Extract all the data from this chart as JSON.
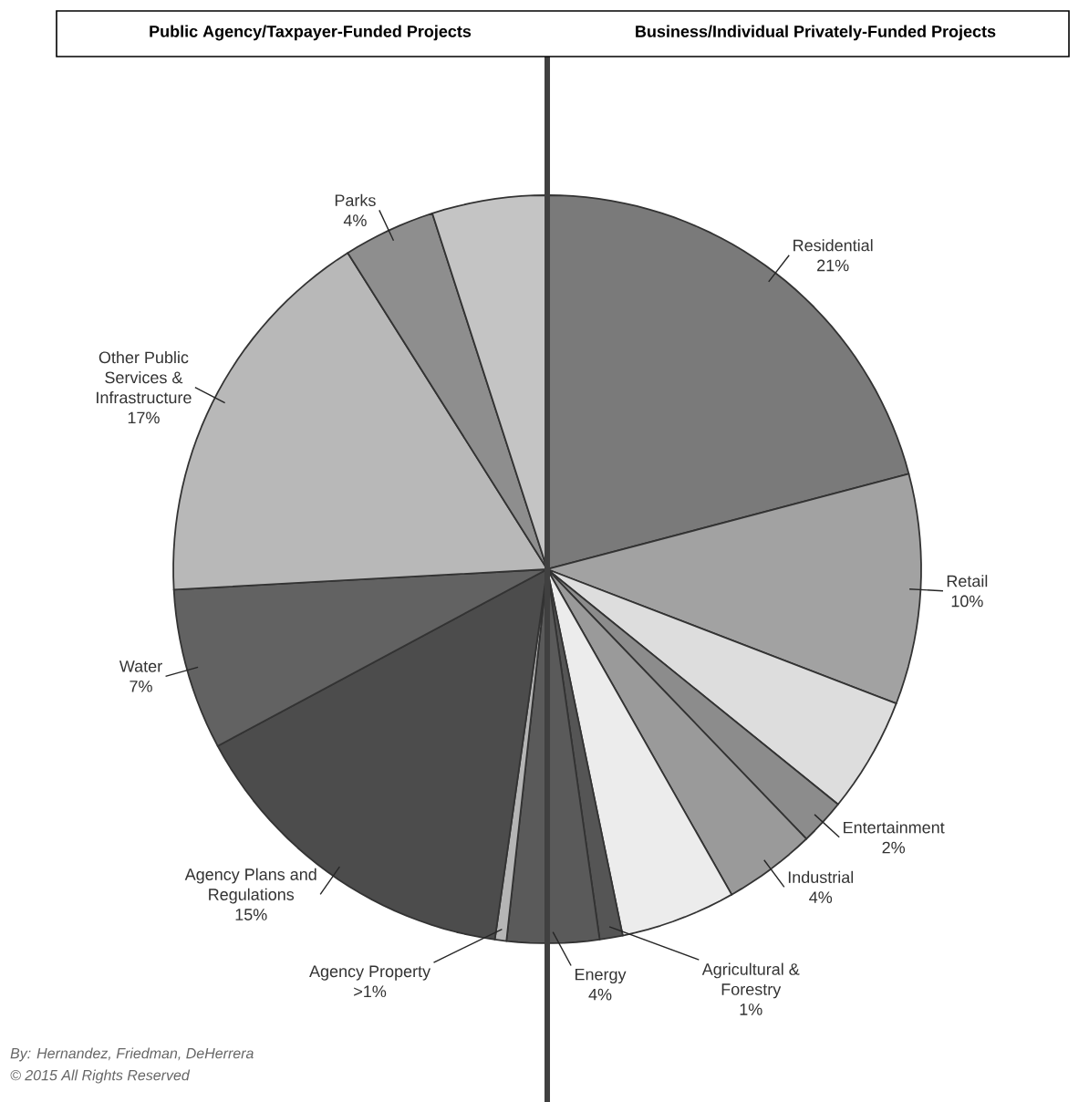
{
  "chart_data": {
    "type": "pie",
    "categories": [
      "Residential",
      "Retail",
      null,
      "Entertainment",
      "Industrial",
      null,
      "Agricultural & Forestry",
      "Energy",
      "Agency Property",
      "Agency Plans and Regulations",
      "Water",
      "Other Public Services & Infrastructure",
      "Parks",
      null
    ],
    "values": [
      21,
      10,
      5,
      2,
      4,
      5,
      1,
      4,
      0.5,
      15,
      7,
      17,
      4,
      5
    ],
    "value_labels": [
      "21%",
      "10%",
      null,
      "2%",
      "4%",
      null,
      "1%",
      "4%",
      ">1%",
      "15%",
      "7%",
      "17%",
      "4%",
      null
    ],
    "colors": [
      "#7a7a7a",
      "#a2a2a2",
      "#dddddd",
      "#8c8c8c",
      "#9a9a9a",
      "#ececec",
      "#555555",
      "#5a5a5a",
      "#b5b5b5",
      "#4c4c4c",
      "#626262",
      "#b8b8b8",
      "#8e8e8e",
      "#c4c4c4"
    ],
    "annotations": [
      "Public Agency/Taxpayer-Funded Projects",
      "Business/Individual Privately-Funded Projects",
      "*By: Hernandez, Friedman, DeHerrera*",
      "*© 2015 All Rights Reserved*"
    ]
  }
}
